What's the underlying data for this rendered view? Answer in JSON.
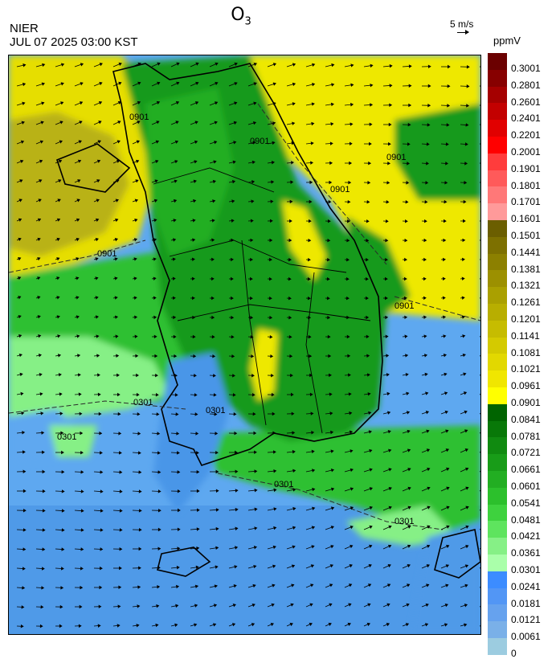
{
  "header": {
    "pollutant": "O",
    "pollutant_sub": "3",
    "agency": "NIER",
    "datetime": "JUL 07 2025 03:00 KST",
    "wind_scale_label": "5 m/s",
    "unit": "ppmV"
  },
  "map": {
    "contour_labels": [
      "0901",
      "0901",
      "0901",
      "0901",
      "0901",
      "0901",
      "0301",
      "0301",
      "0301",
      "0301",
      "0301"
    ]
  },
  "legend": {
    "labels": [
      "0.3001",
      "0.2801",
      "0.2601",
      "0.2401",
      "0.2201",
      "0.2001",
      "0.1901",
      "0.1801",
      "0.1701",
      "0.1601",
      "0.1501",
      "0.1441",
      "0.1381",
      "0.1321",
      "0.1261",
      "0.1201",
      "0.1141",
      "0.1081",
      "0.1021",
      "0.0961",
      "0.0901",
      "0.0841",
      "0.0781",
      "0.0721",
      "0.0661",
      "0.0601",
      "0.0541",
      "0.0481",
      "0.0421",
      "0.0361",
      "0.0301",
      "0.0241",
      "0.0181",
      "0.0121",
      "0.0061",
      "0"
    ],
    "colors": [
      "#6b0000",
      "#870000",
      "#a50000",
      "#c30000",
      "#e10000",
      "#ff0000",
      "#ff3c3c",
      "#ff5a5a",
      "#ff7878",
      "#ff9a9a",
      "#6b5e00",
      "#7d7000",
      "#8c8000",
      "#9c9000",
      "#aaa000",
      "#b8ae00",
      "#c6bc00",
      "#d4ca00",
      "#e2d800",
      "#f0e600",
      "#ffff00",
      "#006400",
      "#087808",
      "#108a10",
      "#189c18",
      "#22ae22",
      "#2cc02c",
      "#3ed23e",
      "#5ee45e",
      "#86f086",
      "#aaffaa",
      "#3c8cff",
      "#5296f5",
      "#66a2ee",
      "#7ab0e8",
      "#9ccce0"
    ]
  },
  "colors": {
    "sea_low": "#4a96e8",
    "sea_mid": "#5ea8f0",
    "land_green": "#139a1b",
    "light_green": "#32c432",
    "yellow": "#f0e800",
    "olive": "#b3ad14"
  }
}
